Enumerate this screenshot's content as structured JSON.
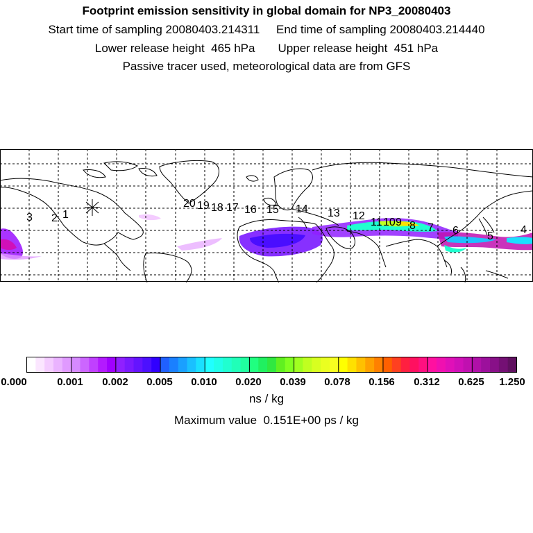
{
  "header": {
    "title": "Footprint emission sensitivity in global domain for NP3_20080403",
    "line2": "Start time of sampling 20080403.214311     End time of sampling 20080403.214440",
    "line3": "Lower release height  465 hPa       Upper release height  451 hPa",
    "line4": "Passive tracer used, meteorological data are from GFS"
  },
  "map": {
    "release_marker": "asterisk-icon",
    "track_labels": [
      "3",
      "2",
      "1",
      "20",
      "19",
      "18",
      "17",
      "16",
      "15",
      "14",
      "13",
      "12",
      "11",
      "10",
      "9",
      "8",
      "7",
      "6",
      "5",
      "4"
    ]
  },
  "colorbar": {
    "tick_labels": [
      "0.000",
      "0.001",
      "0.002",
      "0.005",
      "0.010",
      "0.020",
      "0.039",
      "0.078",
      "0.156",
      "0.312",
      "0.625",
      "1.250"
    ],
    "colors": [
      "#ffffff",
      "#fbe6ff",
      "#f4ccff",
      "#eab3ff",
      "#e09aff",
      "#d68aff",
      "#cc66ff",
      "#c040ff",
      "#b31aff",
      "#a000ff",
      "#9020ff",
      "#7a1aff",
      "#6414ff",
      "#4c10ff",
      "#3000ff",
      "#2060ff",
      "#1a80ff",
      "#1aa0ff",
      "#1ac0ff",
      "#1ae0ff",
      "#20ffff",
      "#20ffe8",
      "#20ffd0",
      "#20ffb8",
      "#20ffa0",
      "#20ff80",
      "#20f060",
      "#30e840",
      "#60f020",
      "#80ff20",
      "#a0ff20",
      "#c0ff20",
      "#d8ff20",
      "#eaff20",
      "#f8ff20",
      "#ffff00",
      "#ffe000",
      "#ffc000",
      "#ffa000",
      "#ff8000",
      "#ff6000",
      "#ff4020",
      "#ff2040",
      "#ff1060",
      "#ff1080",
      "#ff10a0",
      "#f010b0",
      "#e010b8",
      "#d010b8",
      "#c010b0",
      "#b010a8",
      "#9c109c",
      "#881088",
      "#741074",
      "#601060"
    ],
    "units": "ns / kg",
    "max_value": "Maximum value  0.151E+00 ps / kg"
  }
}
